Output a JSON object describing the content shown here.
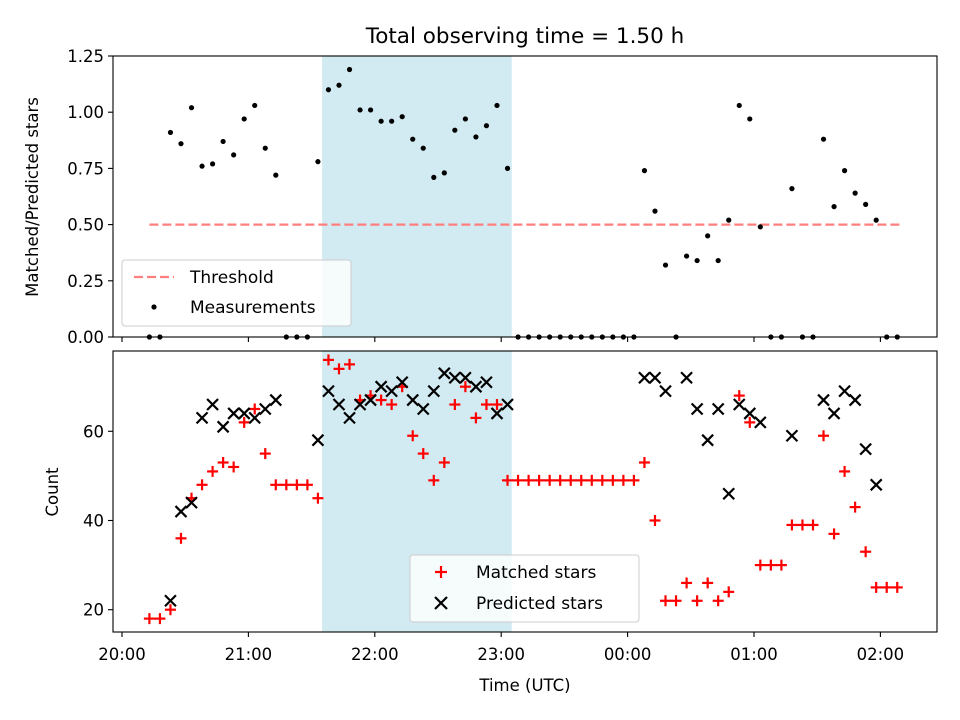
{
  "title": "Total observing time = 1.50 h",
  "xlabel": "Time (UTC)",
  "x_tick_labels": [
    "20:00",
    "21:00",
    "22:00",
    "23:00",
    "00:00",
    "01:00",
    "02:00"
  ],
  "highlight_span": {
    "start": "21:35",
    "end": "23:05",
    "color": "#add8e6"
  },
  "chart_data": [
    {
      "type": "scatter",
      "ylabel": "Matched/Predicted stars",
      "ylim": [
        0,
        1.25
      ],
      "y_tick_labels": [
        "0.00",
        "0.25",
        "0.50",
        "0.75",
        "1.00",
        "1.25"
      ],
      "legend": {
        "placement": "lower-left",
        "threshold_label": "Threshold",
        "measurements_label": "Measurements"
      },
      "threshold": {
        "value": 0.5,
        "x_start": "20:13",
        "x_end": "02:10",
        "color": "#ff7f7f"
      },
      "measurements": [
        [
          "20:13",
          0
        ],
        [
          "20:18",
          0
        ],
        [
          "20:23",
          0.91
        ],
        [
          "20:28",
          0.86
        ],
        [
          "20:33",
          1.02
        ],
        [
          "20:38",
          0.76
        ],
        [
          "20:43",
          0.77
        ],
        [
          "20:48",
          0.87
        ],
        [
          "20:53",
          0.81
        ],
        [
          "20:58",
          0.97
        ],
        [
          "21:03",
          1.03
        ],
        [
          "21:08",
          0.84
        ],
        [
          "21:13",
          0.72
        ],
        [
          "21:18",
          0
        ],
        [
          "21:23",
          0
        ],
        [
          "21:28",
          0
        ],
        [
          "21:33",
          0.78
        ],
        [
          "21:38",
          1.1
        ],
        [
          "21:43",
          1.12
        ],
        [
          "21:48",
          1.19
        ],
        [
          "21:53",
          1.01
        ],
        [
          "21:58",
          1.01
        ],
        [
          "22:03",
          0.96
        ],
        [
          "22:08",
          0.96
        ],
        [
          "22:13",
          0.98
        ],
        [
          "22:18",
          0.88
        ],
        [
          "22:23",
          0.84
        ],
        [
          "22:28",
          0.71
        ],
        [
          "22:33",
          0.73
        ],
        [
          "22:38",
          0.92
        ],
        [
          "22:43",
          0.97
        ],
        [
          "22:48",
          0.89
        ],
        [
          "22:53",
          0.94
        ],
        [
          "22:58",
          1.03
        ],
        [
          "23:03",
          0.75
        ],
        [
          "23:08",
          0
        ],
        [
          "23:13",
          0
        ],
        [
          "23:18",
          0
        ],
        [
          "23:23",
          0
        ],
        [
          "23:28",
          0
        ],
        [
          "23:33",
          0
        ],
        [
          "23:38",
          0
        ],
        [
          "23:43",
          0
        ],
        [
          "23:48",
          0
        ],
        [
          "23:53",
          0
        ],
        [
          "23:58",
          0
        ],
        [
          "00:03",
          0
        ],
        [
          "00:08",
          0.74
        ],
        [
          "00:13",
          0.56
        ],
        [
          "00:18",
          0.32
        ],
        [
          "00:23",
          0
        ],
        [
          "00:28",
          0.36
        ],
        [
          "00:33",
          0.34
        ],
        [
          "00:38",
          0.45
        ],
        [
          "00:43",
          0.34
        ],
        [
          "00:48",
          0.52
        ],
        [
          "00:53",
          1.03
        ],
        [
          "00:58",
          0.97
        ],
        [
          "01:03",
          0.49
        ],
        [
          "01:08",
          0
        ],
        [
          "01:13",
          0
        ],
        [
          "01:18",
          0.66
        ],
        [
          "01:23",
          0
        ],
        [
          "01:28",
          0
        ],
        [
          "01:33",
          0.88
        ],
        [
          "01:38",
          0.58
        ],
        [
          "01:43",
          0.74
        ],
        [
          "01:48",
          0.64
        ],
        [
          "01:53",
          0.59
        ],
        [
          "01:58",
          0.52
        ],
        [
          "02:03",
          0
        ],
        [
          "02:08",
          0
        ]
      ]
    },
    {
      "type": "scatter",
      "ylabel": "Count",
      "ylim": [
        15,
        78
      ],
      "y_tick_labels": [
        "20",
        "40",
        "60"
      ],
      "legend": {
        "placement": "lower-center",
        "matched_label": "Matched stars",
        "predicted_label": "Predicted stars"
      },
      "matched_color": "#ff0000",
      "predicted_color": "#000000",
      "matched": [
        [
          "20:13",
          18
        ],
        [
          "20:18",
          18
        ],
        [
          "20:23",
          20
        ],
        [
          "20:28",
          36
        ],
        [
          "20:33",
          45
        ],
        [
          "20:38",
          48
        ],
        [
          "20:43",
          51
        ],
        [
          "20:48",
          53
        ],
        [
          "20:53",
          52
        ],
        [
          "20:58",
          62
        ],
        [
          "21:03",
          65
        ],
        [
          "21:08",
          55
        ],
        [
          "21:13",
          48
        ],
        [
          "21:18",
          48
        ],
        [
          "21:23",
          48
        ],
        [
          "21:28",
          48
        ],
        [
          "21:33",
          45
        ],
        [
          "21:38",
          76
        ],
        [
          "21:43",
          74
        ],
        [
          "21:48",
          75
        ],
        [
          "21:53",
          67
        ],
        [
          "21:58",
          68
        ],
        [
          "22:03",
          67
        ],
        [
          "22:08",
          66
        ],
        [
          "22:13",
          70
        ],
        [
          "22:18",
          59
        ],
        [
          "22:23",
          55
        ],
        [
          "22:28",
          49
        ],
        [
          "22:33",
          53
        ],
        [
          "22:38",
          66
        ],
        [
          "22:43",
          70
        ],
        [
          "22:48",
          63
        ],
        [
          "22:53",
          66
        ],
        [
          "22:58",
          66
        ],
        [
          "23:03",
          49
        ],
        [
          "23:08",
          49
        ],
        [
          "23:13",
          49
        ],
        [
          "23:18",
          49
        ],
        [
          "23:23",
          49
        ],
        [
          "23:28",
          49
        ],
        [
          "23:33",
          49
        ],
        [
          "23:38",
          49
        ],
        [
          "23:43",
          49
        ],
        [
          "23:48",
          49
        ],
        [
          "23:53",
          49
        ],
        [
          "23:58",
          49
        ],
        [
          "00:03",
          49
        ],
        [
          "00:08",
          53
        ],
        [
          "00:13",
          40
        ],
        [
          "00:18",
          22
        ],
        [
          "00:23",
          22
        ],
        [
          "00:28",
          26
        ],
        [
          "00:33",
          22
        ],
        [
          "00:38",
          26
        ],
        [
          "00:43",
          22
        ],
        [
          "00:48",
          24
        ],
        [
          "00:53",
          68
        ],
        [
          "00:58",
          62
        ],
        [
          "01:03",
          30
        ],
        [
          "01:08",
          30
        ],
        [
          "01:13",
          30
        ],
        [
          "01:18",
          39
        ],
        [
          "01:23",
          39
        ],
        [
          "01:28",
          39
        ],
        [
          "01:33",
          59
        ],
        [
          "01:38",
          37
        ],
        [
          "01:43",
          51
        ],
        [
          "01:48",
          43
        ],
        [
          "01:53",
          33
        ],
        [
          "01:58",
          25
        ],
        [
          "02:03",
          25
        ],
        [
          "02:08",
          25
        ]
      ],
      "predicted": [
        [
          "20:23",
          22
        ],
        [
          "20:28",
          42
        ],
        [
          "20:33",
          44
        ],
        [
          "20:38",
          63
        ],
        [
          "20:43",
          66
        ],
        [
          "20:48",
          61
        ],
        [
          "20:53",
          64
        ],
        [
          "20:58",
          64
        ],
        [
          "21:03",
          63
        ],
        [
          "21:08",
          65
        ],
        [
          "21:13",
          67
        ],
        [
          "21:33",
          58
        ],
        [
          "21:38",
          69
        ],
        [
          "21:43",
          66
        ],
        [
          "21:48",
          63
        ],
        [
          "21:53",
          66
        ],
        [
          "21:58",
          67
        ],
        [
          "22:03",
          70
        ],
        [
          "22:08",
          69
        ],
        [
          "22:13",
          71
        ],
        [
          "22:18",
          67
        ],
        [
          "22:23",
          65
        ],
        [
          "22:28",
          69
        ],
        [
          "22:33",
          73
        ],
        [
          "22:38",
          72
        ],
        [
          "22:43",
          72
        ],
        [
          "22:48",
          70
        ],
        [
          "22:53",
          71
        ],
        [
          "22:58",
          64
        ],
        [
          "23:03",
          66
        ],
        [
          "00:08",
          72
        ],
        [
          "00:13",
          72
        ],
        [
          "00:18",
          69
        ],
        [
          "00:28",
          72
        ],
        [
          "00:33",
          65
        ],
        [
          "00:38",
          58
        ],
        [
          "00:43",
          65
        ],
        [
          "00:48",
          46
        ],
        [
          "00:53",
          66
        ],
        [
          "00:58",
          64
        ],
        [
          "01:03",
          62
        ],
        [
          "01:18",
          59
        ],
        [
          "01:33",
          67
        ],
        [
          "01:38",
          64
        ],
        [
          "01:43",
          69
        ],
        [
          "01:48",
          67
        ],
        [
          "01:53",
          56
        ],
        [
          "01:58",
          48
        ]
      ]
    }
  ]
}
